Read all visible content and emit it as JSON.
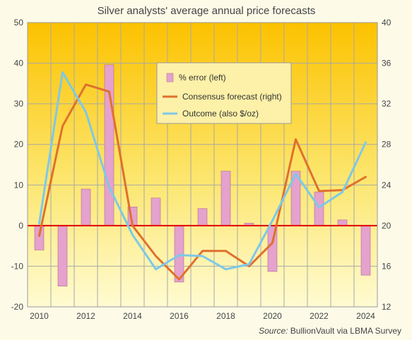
{
  "chart_data": {
    "type": "bar",
    "title": "Silver analysts' average annual price forecasts",
    "x": [
      2010,
      2011,
      2012,
      2013,
      2014,
      2015,
      2016,
      2017,
      2018,
      2019,
      2020,
      2021,
      2022,
      2023,
      2024
    ],
    "x_tick_labels": [
      "2010",
      "2012",
      "2014",
      "2016",
      "2018",
      "2020",
      "2022",
      "2024"
    ],
    "y_left": {
      "min": -20,
      "max": 50,
      "step": 10,
      "tick_labels": [
        "-20",
        "-10",
        "0",
        "10",
        "20",
        "30",
        "40",
        "50"
      ]
    },
    "y_right": {
      "min": 12,
      "max": 40,
      "step": 4,
      "tick_labels": [
        "12",
        "16",
        "20",
        "24",
        "28",
        "32",
        "36",
        "40"
      ]
    },
    "series": [
      {
        "name": "% error (left)",
        "type": "bar",
        "axis": "left",
        "color": "#e4a2cc",
        "values": [
          -6.0,
          -14.9,
          9.0,
          39.6,
          4.6,
          6.8,
          -13.9,
          4.2,
          13.4,
          0.6,
          -11.3,
          13.4,
          8.3,
          1.4,
          -12.2
        ]
      },
      {
        "name": "Consensus forecast (right)",
        "type": "line",
        "axis": "right",
        "color": "#e0702e",
        "values": [
          19.0,
          29.8,
          33.9,
          33.2,
          20.0,
          17.0,
          14.7,
          17.5,
          17.5,
          16.0,
          18.3,
          28.5,
          23.4,
          23.5,
          24.8
        ]
      },
      {
        "name": "Outcome (also $/oz)",
        "type": "line",
        "axis": "right",
        "color": "#7ec8e8",
        "values": [
          20.2,
          35.1,
          31.2,
          23.8,
          19.1,
          15.7,
          17.1,
          17.0,
          15.7,
          16.2,
          20.5,
          25.1,
          21.8,
          23.3,
          28.2
        ]
      }
    ],
    "legend_position": "top-center",
    "grid": true,
    "source_label": "Source:",
    "source_text": "BullionVault via LBMA Survey"
  }
}
